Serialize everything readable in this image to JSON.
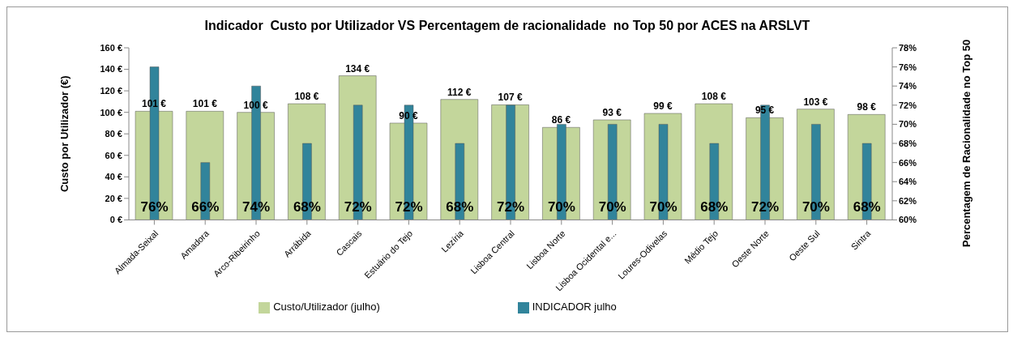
{
  "chart_data": {
    "type": "bar",
    "title": "Indicador  Custo por Utilizador VS Percentagem de racionalidade  no Top 50 por ACES na ARSLVT",
    "ylabel": "Custo por Utilizador (€)",
    "y2label": "Percentagem de Racionalidade no Top 50",
    "categories": [
      "Almada-Seixal",
      "Amadora",
      "Arco-Ribeirinho",
      "Arrábida",
      "Cascais",
      "Estuário do Tejo",
      "Lezíria",
      "Lisboa Central",
      "Lisboa Norte",
      "Lisboa Ocidental e...",
      "Loures-Odivelas",
      "Médio Tejo",
      "Oeste Norte",
      "Oeste Sul",
      "Sintra"
    ],
    "series": [
      {
        "name": "Custo/Utilizador (julho)",
        "color": "#c3d69b",
        "values": [
          101,
          101,
          100,
          108,
          134,
          90,
          112,
          107,
          86,
          93,
          99,
          108,
          95,
          103,
          98
        ],
        "value_labels": [
          "101 €",
          "101 €",
          "100 €",
          "108 €",
          "134 €",
          "90 €",
          "112 €",
          "107 €",
          "86 €",
          "93 €",
          "99 €",
          "108 €",
          "95 €",
          "103 €",
          "98 €"
        ]
      },
      {
        "name": "INDICADOR julho",
        "color": "#31849b",
        "axis": "y2",
        "values": [
          76,
          66,
          74,
          68,
          72,
          72,
          68,
          72,
          70,
          70,
          70,
          68,
          72,
          70,
          68
        ],
        "value_labels": [
          "76%",
          "66%",
          "74%",
          "68%",
          "72%",
          "72%",
          "68%",
          "72%",
          "70%",
          "70%",
          "70%",
          "68%",
          "72%",
          "70%",
          "68%"
        ]
      }
    ],
    "ylim": [
      0,
      160
    ],
    "yticks": [
      {
        "value": 0,
        "label": "0 €"
      },
      {
        "value": 20,
        "label": "20 €"
      },
      {
        "value": 40,
        "label": "40 €"
      },
      {
        "value": 60,
        "label": "60 €"
      },
      {
        "value": 80,
        "label": "80 €"
      },
      {
        "value": 100,
        "label": "100 €"
      },
      {
        "value": 120,
        "label": "120 €"
      },
      {
        "value": 140,
        "label": "140 €"
      },
      {
        "value": 160,
        "label": "160 €"
      }
    ],
    "y2lim": [
      60,
      78
    ],
    "y2ticks": [
      {
        "value": 60,
        "label": "60%"
      },
      {
        "value": 62,
        "label": "62%"
      },
      {
        "value": 64,
        "label": "64%"
      },
      {
        "value": 66,
        "label": "66%"
      },
      {
        "value": 68,
        "label": "68%"
      },
      {
        "value": 70,
        "label": "70%"
      },
      {
        "value": 72,
        "label": "72%"
      },
      {
        "value": 74,
        "label": "74%"
      },
      {
        "value": 76,
        "label": "76%"
      },
      {
        "value": 78,
        "label": "78%"
      }
    ],
    "grid": false,
    "legend": "bottom"
  }
}
